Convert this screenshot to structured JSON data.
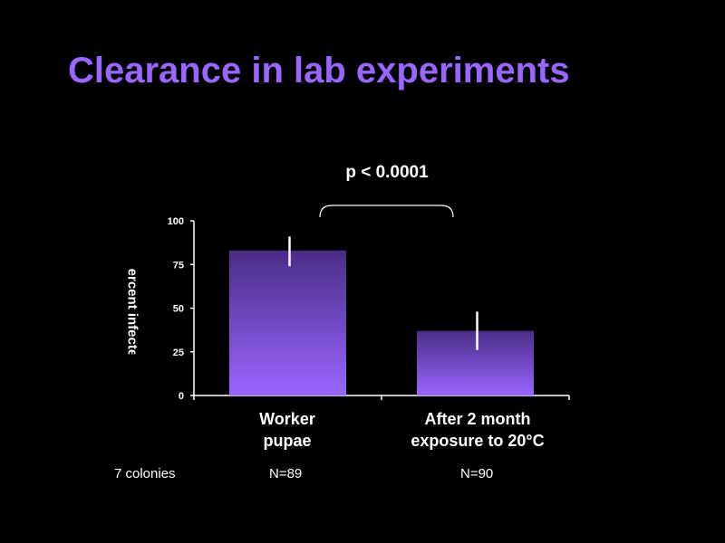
{
  "slide": {
    "title": "Clearance in lab experiments",
    "significance": "p < 0.0001",
    "colonies": "7 colonies",
    "sample_sizes": [
      "N=89",
      "N=90"
    ]
  },
  "colors": {
    "title": "#9966ff",
    "bar_top": "#4a2d86",
    "bar_bottom": "#9966ff",
    "background": "#000000"
  },
  "chart_data": {
    "type": "bar",
    "title": "",
    "ylabel": "ercent infected",
    "categories": [
      [
        "Worker",
        "pupae"
      ],
      [
        "After 2 month",
        "exposure to 20°C"
      ]
    ],
    "values": [
      83,
      37
    ],
    "error_low": [
      74,
      26
    ],
    "error_high": [
      91,
      48
    ],
    "ylim": [
      0,
      100
    ],
    "yticks": [
      "0",
      "25",
      "50",
      "75",
      "100"
    ],
    "grid": false,
    "legend": "none"
  }
}
